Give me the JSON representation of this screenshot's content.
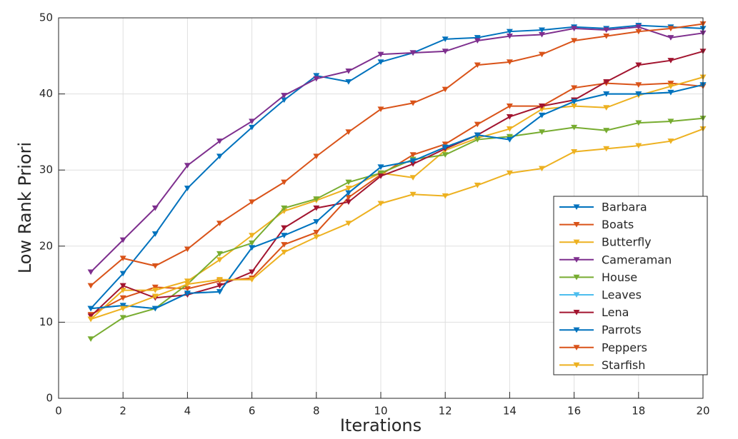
{
  "chart_data": {
    "type": "line",
    "xlabel": "Iterations",
    "ylabel": "Low Rank Priori",
    "x": [
      1,
      2,
      3,
      4,
      5,
      6,
      7,
      8,
      9,
      10,
      11,
      12,
      13,
      14,
      15,
      16,
      17,
      18,
      19,
      20
    ],
    "xlim": [
      0,
      20
    ],
    "xticks": [
      0,
      2,
      4,
      6,
      8,
      10,
      12,
      14,
      16,
      18,
      20
    ],
    "ylim": [
      0,
      50
    ],
    "yticks": [
      0,
      10,
      20,
      30,
      40,
      50
    ],
    "grid": true,
    "legend": "lower right",
    "marker": "triangle-down",
    "series": [
      {
        "name": "Barbara",
        "color": "#0072BD",
        "values": [
          11.8,
          16.4,
          21.6,
          27.6,
          31.8,
          35.6,
          39.2,
          42.4,
          41.6,
          44.2,
          45.4,
          47.2,
          47.4,
          48.2,
          48.4,
          48.8,
          48.6,
          49,
          48.8,
          48.6
        ]
      },
      {
        "name": "Boats",
        "color": "#D95319",
        "values": [
          11,
          13.2,
          14.6,
          14.4,
          15.4,
          15.8,
          20.2,
          21.8,
          26.4,
          29.4,
          32,
          33.4,
          36,
          38.4,
          38.4,
          40.8,
          41.4,
          41.2,
          41.4,
          41
        ]
      },
      {
        "name": "Butterfly",
        "color": "#EDB120",
        "values": [
          10.4,
          14.2,
          14.2,
          15.4,
          18.2,
          21.4,
          24.6,
          26,
          27.6,
          29.6,
          29,
          32.6,
          34.2,
          35.4,
          38,
          38.4,
          38.2,
          39.8,
          41,
          42.2
        ]
      },
      {
        "name": "Cameraman",
        "color": "#7E2F8E",
        "values": [
          16.6,
          20.8,
          25,
          30.6,
          33.8,
          36.4,
          39.8,
          42,
          43,
          45.2,
          45.4,
          45.6,
          47,
          47.6,
          47.8,
          48.6,
          48.4,
          48.8,
          47.4,
          48
        ]
      },
      {
        "name": "House",
        "color": "#77AC30",
        "values": [
          7.8,
          10.6,
          11.8,
          15,
          19,
          20.4,
          25,
          26.2,
          28.4,
          29.6,
          31.4,
          32,
          34,
          34.4,
          35,
          35.6,
          35.2,
          36.2,
          36.4,
          36.8
        ]
      },
      {
        "name": "Leaves",
        "color": "#4DBEEE",
        "values": [
          11.8,
          12.2,
          11.8,
          13.8,
          14,
          19.8,
          21.4,
          23.2,
          27,
          30.4,
          31.2,
          33,
          34.6,
          34,
          37.2,
          39,
          40,
          40,
          40.2,
          41.2
        ]
      },
      {
        "name": "Lena",
        "color": "#A2142F",
        "values": [
          10.8,
          14.8,
          13.2,
          13.6,
          14.8,
          16.6,
          22.4,
          25,
          25.8,
          29.2,
          30.8,
          32.8,
          34.6,
          37,
          38.4,
          39.2,
          41.6,
          43.8,
          44.4,
          45.6
        ]
      },
      {
        "name": "Parrots",
        "color": "#0072BD",
        "values": [
          11.8,
          12.2,
          11.8,
          13.8,
          14,
          19.8,
          21.4,
          23.2,
          27,
          30.4,
          31.2,
          33,
          34.6,
          34,
          37.2,
          39,
          40,
          40,
          40.2,
          41.2
        ]
      },
      {
        "name": "Peppers",
        "color": "#D95319",
        "values": [
          14.8,
          18.4,
          17.4,
          19.6,
          23,
          25.8,
          28.4,
          31.8,
          35,
          38,
          38.8,
          40.6,
          43.8,
          44.2,
          45.2,
          47,
          47.6,
          48.2,
          48.6,
          49.2
        ]
      },
      {
        "name": "Starfish",
        "color": "#EDB120",
        "values": [
          10.4,
          11.8,
          13.4,
          15,
          15.6,
          15.6,
          19.2,
          21.2,
          23,
          25.6,
          26.8,
          26.6,
          28,
          29.6,
          30.2,
          32.4,
          32.8,
          33.2,
          33.8,
          35.4
        ]
      }
    ]
  }
}
